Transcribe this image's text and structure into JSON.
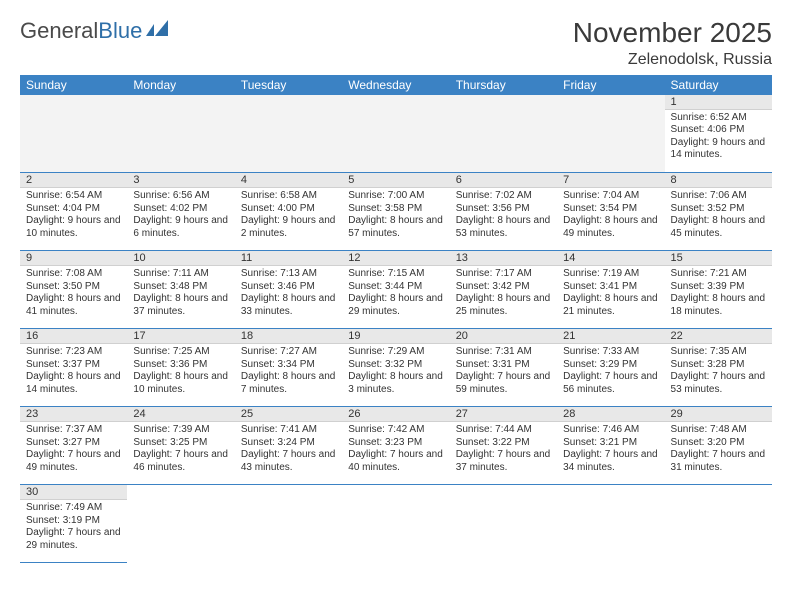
{
  "brand": {
    "part1": "General",
    "part2": "Blue"
  },
  "title": "November 2025",
  "location": "Zelenodolsk, Russia",
  "colors": {
    "header_bg": "#3b82c4",
    "header_text": "#ffffff",
    "daynum_bg": "#e8e8e8",
    "row_border": "#3b82c4",
    "body_text": "#333333",
    "logo_gray": "#4a4a4a",
    "logo_blue": "#2f6fa8"
  },
  "weekdays": [
    "Sunday",
    "Monday",
    "Tuesday",
    "Wednesday",
    "Thursday",
    "Friday",
    "Saturday"
  ],
  "leading_blanks": 6,
  "days": [
    {
      "n": 1,
      "sunrise": "6:52 AM",
      "sunset": "4:06 PM",
      "daylight": "9 hours and 14 minutes."
    },
    {
      "n": 2,
      "sunrise": "6:54 AM",
      "sunset": "4:04 PM",
      "daylight": "9 hours and 10 minutes."
    },
    {
      "n": 3,
      "sunrise": "6:56 AM",
      "sunset": "4:02 PM",
      "daylight": "9 hours and 6 minutes."
    },
    {
      "n": 4,
      "sunrise": "6:58 AM",
      "sunset": "4:00 PM",
      "daylight": "9 hours and 2 minutes."
    },
    {
      "n": 5,
      "sunrise": "7:00 AM",
      "sunset": "3:58 PM",
      "daylight": "8 hours and 57 minutes."
    },
    {
      "n": 6,
      "sunrise": "7:02 AM",
      "sunset": "3:56 PM",
      "daylight": "8 hours and 53 minutes."
    },
    {
      "n": 7,
      "sunrise": "7:04 AM",
      "sunset": "3:54 PM",
      "daylight": "8 hours and 49 minutes."
    },
    {
      "n": 8,
      "sunrise": "7:06 AM",
      "sunset": "3:52 PM",
      "daylight": "8 hours and 45 minutes."
    },
    {
      "n": 9,
      "sunrise": "7:08 AM",
      "sunset": "3:50 PM",
      "daylight": "8 hours and 41 minutes."
    },
    {
      "n": 10,
      "sunrise": "7:11 AM",
      "sunset": "3:48 PM",
      "daylight": "8 hours and 37 minutes."
    },
    {
      "n": 11,
      "sunrise": "7:13 AM",
      "sunset": "3:46 PM",
      "daylight": "8 hours and 33 minutes."
    },
    {
      "n": 12,
      "sunrise": "7:15 AM",
      "sunset": "3:44 PM",
      "daylight": "8 hours and 29 minutes."
    },
    {
      "n": 13,
      "sunrise": "7:17 AM",
      "sunset": "3:42 PM",
      "daylight": "8 hours and 25 minutes."
    },
    {
      "n": 14,
      "sunrise": "7:19 AM",
      "sunset": "3:41 PM",
      "daylight": "8 hours and 21 minutes."
    },
    {
      "n": 15,
      "sunrise": "7:21 AM",
      "sunset": "3:39 PM",
      "daylight": "8 hours and 18 minutes."
    },
    {
      "n": 16,
      "sunrise": "7:23 AM",
      "sunset": "3:37 PM",
      "daylight": "8 hours and 14 minutes."
    },
    {
      "n": 17,
      "sunrise": "7:25 AM",
      "sunset": "3:36 PM",
      "daylight": "8 hours and 10 minutes."
    },
    {
      "n": 18,
      "sunrise": "7:27 AM",
      "sunset": "3:34 PM",
      "daylight": "8 hours and 7 minutes."
    },
    {
      "n": 19,
      "sunrise": "7:29 AM",
      "sunset": "3:32 PM",
      "daylight": "8 hours and 3 minutes."
    },
    {
      "n": 20,
      "sunrise": "7:31 AM",
      "sunset": "3:31 PM",
      "daylight": "7 hours and 59 minutes."
    },
    {
      "n": 21,
      "sunrise": "7:33 AM",
      "sunset": "3:29 PM",
      "daylight": "7 hours and 56 minutes."
    },
    {
      "n": 22,
      "sunrise": "7:35 AM",
      "sunset": "3:28 PM",
      "daylight": "7 hours and 53 minutes."
    },
    {
      "n": 23,
      "sunrise": "7:37 AM",
      "sunset": "3:27 PM",
      "daylight": "7 hours and 49 minutes."
    },
    {
      "n": 24,
      "sunrise": "7:39 AM",
      "sunset": "3:25 PM",
      "daylight": "7 hours and 46 minutes."
    },
    {
      "n": 25,
      "sunrise": "7:41 AM",
      "sunset": "3:24 PM",
      "daylight": "7 hours and 43 minutes."
    },
    {
      "n": 26,
      "sunrise": "7:42 AM",
      "sunset": "3:23 PM",
      "daylight": "7 hours and 40 minutes."
    },
    {
      "n": 27,
      "sunrise": "7:44 AM",
      "sunset": "3:22 PM",
      "daylight": "7 hours and 37 minutes."
    },
    {
      "n": 28,
      "sunrise": "7:46 AM",
      "sunset": "3:21 PM",
      "daylight": "7 hours and 34 minutes."
    },
    {
      "n": 29,
      "sunrise": "7:48 AM",
      "sunset": "3:20 PM",
      "daylight": "7 hours and 31 minutes."
    },
    {
      "n": 30,
      "sunrise": "7:49 AM",
      "sunset": "3:19 PM",
      "daylight": "7 hours and 29 minutes."
    }
  ],
  "labels": {
    "sunrise": "Sunrise:",
    "sunset": "Sunset:",
    "daylight": "Daylight:"
  }
}
